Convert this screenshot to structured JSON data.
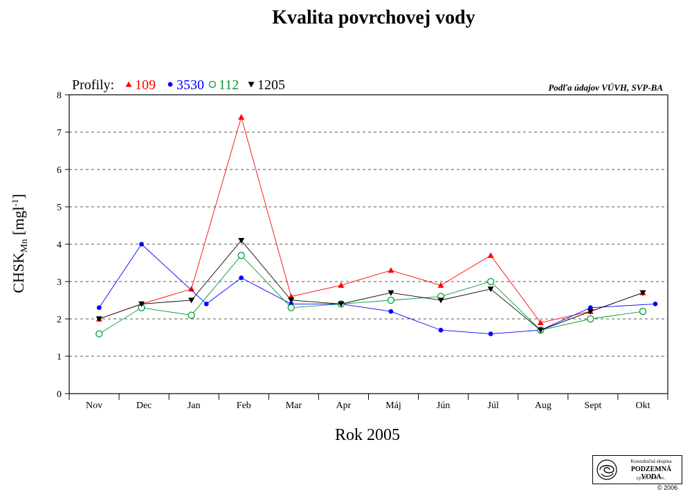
{
  "chart_data": {
    "type": "line",
    "title": "Kvalita povrchovej vody",
    "xlabel": "Rok 2005",
    "ylabel": {
      "main": "CHSK",
      "sub": "Mn",
      "unit_open": " [mgl",
      "unit_sup": "-1",
      "unit_close": "]"
    },
    "source_note": "Podľa údajov VÚVH, SVP-BA",
    "legend_title": "Profily:",
    "legend_placement": "top-left",
    "categories": [
      "Nov",
      "Dec",
      "Jan",
      "Feb",
      "Mar",
      "Apr",
      "Máj",
      "Jún",
      "Júl",
      "Aug",
      "Sept",
      "Okt"
    ],
    "ylim": [
      0,
      8
    ],
    "yticks": [
      "0",
      "1",
      "2",
      "3",
      "4",
      "5",
      "6",
      "7",
      "8"
    ],
    "grid": "horizontal-dashed",
    "series": [
      {
        "name": "109",
        "color": "#ff0000",
        "marker": "triangle-up",
        "x": [
          0.1,
          0.95,
          1.95,
          2.95,
          3.95,
          4.95,
          5.95,
          6.95,
          7.95,
          8.95,
          9.95,
          11.0
        ],
        "values": [
          2.0,
          2.4,
          2.8,
          7.4,
          2.6,
          2.9,
          3.3,
          2.9,
          3.7,
          1.9,
          2.2,
          2.7
        ]
      },
      {
        "name": "3530",
        "color": "#0000ff",
        "marker": "filled-circle",
        "x": [
          0.1,
          0.95,
          2.25,
          2.95,
          3.95,
          4.95,
          5.95,
          6.95,
          7.95,
          8.95,
          9.95,
          11.25
        ],
        "values": [
          2.3,
          4.0,
          2.4,
          3.1,
          2.4,
          2.4,
          2.2,
          1.7,
          1.6,
          1.7,
          2.3,
          2.4
        ]
      },
      {
        "name": "112",
        "color": "#009933",
        "marker": "open-circle",
        "x": [
          0.1,
          0.95,
          1.95,
          2.95,
          3.95,
          4.95,
          5.95,
          6.95,
          7.95,
          8.95,
          9.95,
          11.0
        ],
        "values": [
          1.6,
          2.3,
          2.1,
          3.7,
          2.3,
          2.4,
          2.5,
          2.6,
          3.0,
          1.7,
          2.0,
          2.2
        ]
      },
      {
        "name": "1205",
        "color": "#000000",
        "marker": "triangle-down",
        "x": [
          0.1,
          0.95,
          1.95,
          2.95,
          3.95,
          4.95,
          5.95,
          6.95,
          7.95,
          8.95,
          9.95,
          11.0
        ],
        "values": [
          2.0,
          2.4,
          2.5,
          4.1,
          2.5,
          2.4,
          2.7,
          2.5,
          2.8,
          1.7,
          2.2,
          2.7
        ]
      }
    ]
  },
  "logo": {
    "line1": "Konzultačná skupina",
    "line2": "PODZEMNÁ VODA",
    "line3": "spol. s r. o.",
    "icon": "swirl-logo-icon"
  },
  "copyright": "© 2006"
}
